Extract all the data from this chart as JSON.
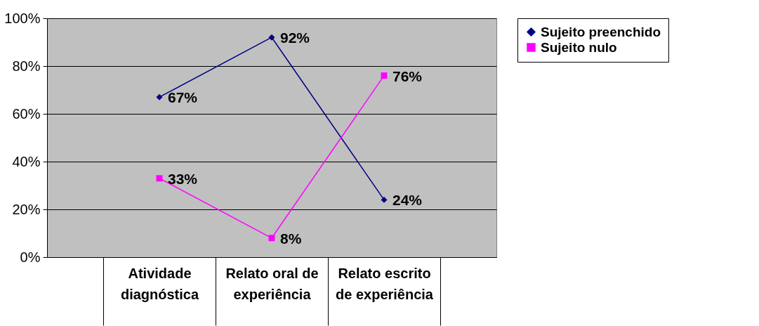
{
  "chart_data": {
    "type": "line",
    "categories": [
      "Atividade diagnóstica",
      "Relato oral de experiência",
      "Relato escrito de experiência"
    ],
    "series": [
      {
        "name": "Sujeito preenchido",
        "color": "#000080",
        "marker": "diamond",
        "values": [
          67,
          92,
          24
        ],
        "value_labels": [
          "67%",
          "92%",
          "24%"
        ]
      },
      {
        "name": "Sujeito nulo",
        "color": "#ff00ff",
        "marker": "square",
        "values": [
          33,
          8,
          76
        ],
        "value_labels": [
          "33%",
          "8%",
          "76%"
        ]
      }
    ],
    "ylim": [
      0,
      100
    ],
    "yticks": [
      {
        "value": 0,
        "label": "0%"
      },
      {
        "value": 20,
        "label": "20%"
      },
      {
        "value": 40,
        "label": "40%"
      },
      {
        "value": 60,
        "label": "60%"
      },
      {
        "value": 80,
        "label": "80%"
      },
      {
        "value": 100,
        "label": "100%"
      }
    ],
    "grid": "y",
    "legend": "right"
  }
}
